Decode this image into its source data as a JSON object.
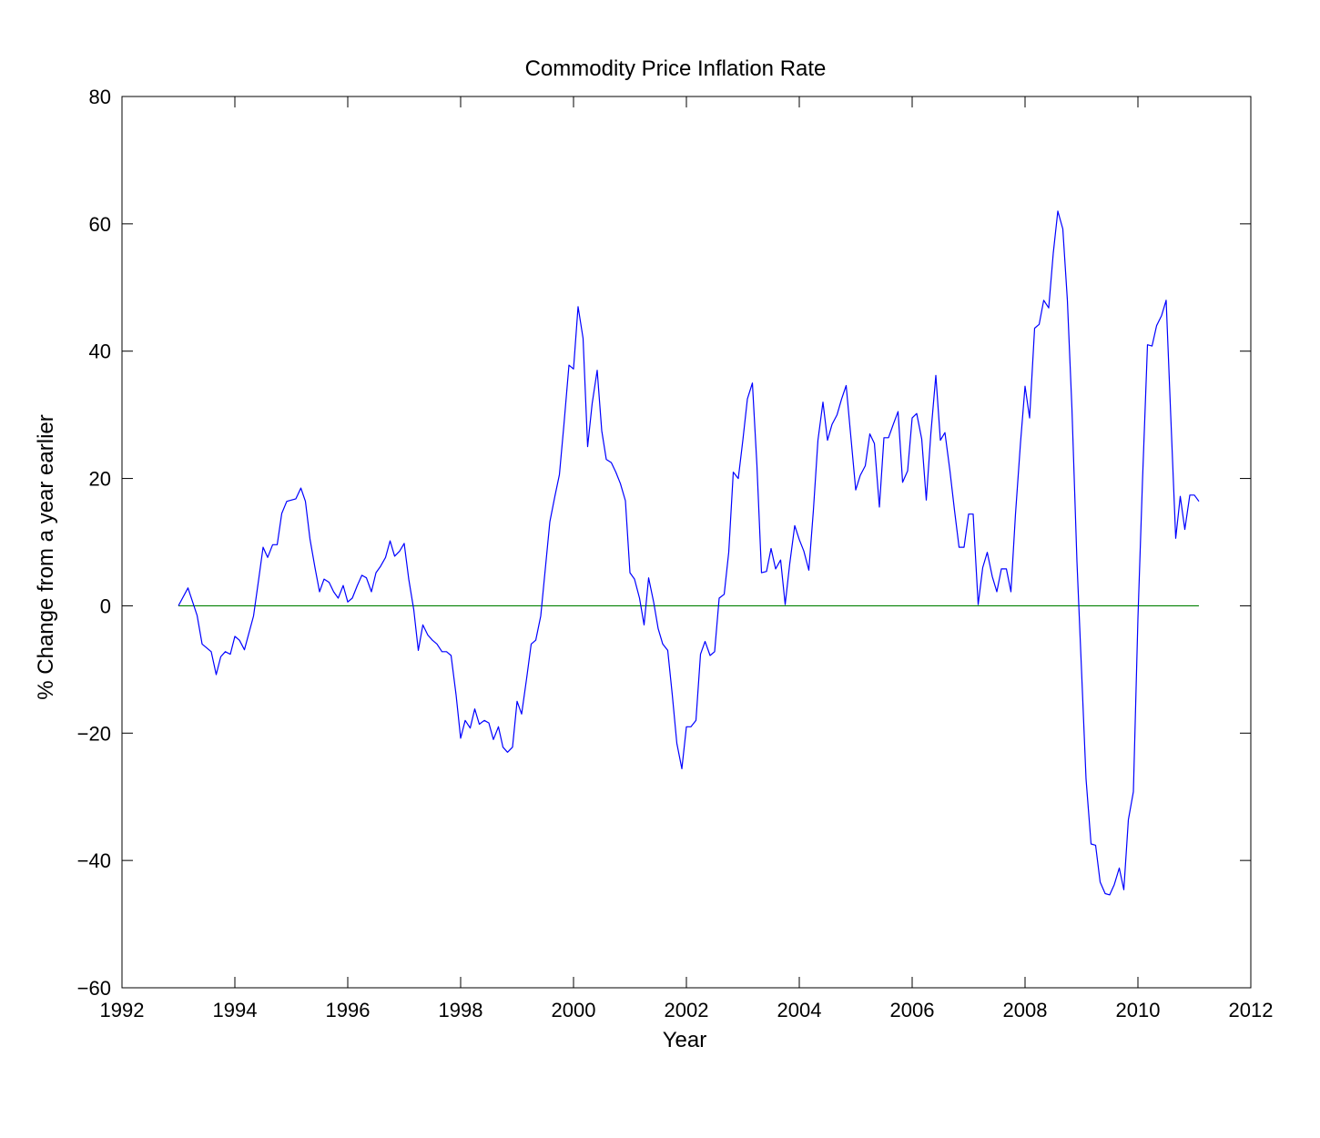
{
  "chart_data": {
    "type": "line",
    "title": "Commodity Price Inflation Rate",
    "xlabel": "Year",
    "ylabel": "% Change from a year earlier",
    "xlim": [
      1992,
      2012
    ],
    "ylim": [
      -60,
      80
    ],
    "xticks": [
      1992,
      1994,
      1996,
      1998,
      2000,
      2002,
      2004,
      2006,
      2008,
      2010,
      2012
    ],
    "yticks": [
      -60,
      -40,
      -20,
      0,
      20,
      40,
      60,
      80
    ],
    "ytick_labels": [
      "−60",
      "−40",
      "−20",
      "0",
      "20",
      "40",
      "60",
      "80"
    ],
    "grid": false,
    "colors": {
      "series": "#0000ff",
      "zero_line": "#008000",
      "axes": "#000000"
    },
    "series": [
      {
        "color": "#0000ff",
        "points": [
          [
            1993.0,
            0
          ],
          [
            1993.17,
            2.8
          ],
          [
            1993.33,
            -1.5
          ],
          [
            1993.42,
            -6
          ],
          [
            1993.58,
            -7.2
          ],
          [
            1993.67,
            -10.8
          ],
          [
            1993.75,
            -8
          ],
          [
            1993.83,
            -7.2
          ],
          [
            1993.92,
            -7.6
          ],
          [
            1994.0,
            -4.8
          ],
          [
            1994.08,
            -5.4
          ],
          [
            1994.17,
            -6.9
          ],
          [
            1994.33,
            -1.6
          ],
          [
            1994.42,
            4
          ],
          [
            1994.5,
            9.2
          ],
          [
            1994.58,
            7.6
          ],
          [
            1994.67,
            9.6
          ],
          [
            1994.75,
            9.6
          ],
          [
            1994.83,
            14.5
          ],
          [
            1994.92,
            16.4
          ],
          [
            1995.0,
            16.6
          ],
          [
            1995.08,
            16.8
          ],
          [
            1995.17,
            18.5
          ],
          [
            1995.25,
            16.4
          ],
          [
            1995.33,
            10.5
          ],
          [
            1995.42,
            6
          ],
          [
            1995.5,
            2.2
          ],
          [
            1995.58,
            4.2
          ],
          [
            1995.67,
            3.7
          ],
          [
            1995.75,
            2.2
          ],
          [
            1995.83,
            1.2
          ],
          [
            1995.92,
            3.2
          ],
          [
            1996.0,
            0.6
          ],
          [
            1996.08,
            1.2
          ],
          [
            1996.17,
            3.2
          ],
          [
            1996.25,
            4.8
          ],
          [
            1996.33,
            4.4
          ],
          [
            1996.42,
            2.2
          ],
          [
            1996.5,
            5.2
          ],
          [
            1996.58,
            6.2
          ],
          [
            1996.67,
            7.6
          ],
          [
            1996.75,
            10.2
          ],
          [
            1996.83,
            7.8
          ],
          [
            1996.92,
            8.6
          ],
          [
            1997.0,
            9.8
          ],
          [
            1997.08,
            4.2
          ],
          [
            1997.17,
            -0.6
          ],
          [
            1997.25,
            -7
          ],
          [
            1997.33,
            -3
          ],
          [
            1997.42,
            -4.6
          ],
          [
            1997.5,
            -5.4
          ],
          [
            1997.58,
            -6
          ],
          [
            1997.67,
            -7.2
          ],
          [
            1997.75,
            -7.2
          ],
          [
            1997.83,
            -7.8
          ],
          [
            1997.92,
            -14
          ],
          [
            1998.0,
            -20.8
          ],
          [
            1998.08,
            -18
          ],
          [
            1998.17,
            -19.2
          ],
          [
            1998.25,
            -16.2
          ],
          [
            1998.33,
            -18.6
          ],
          [
            1998.42,
            -18
          ],
          [
            1998.5,
            -18.4
          ],
          [
            1998.58,
            -21
          ],
          [
            1998.67,
            -19
          ],
          [
            1998.75,
            -22.2
          ],
          [
            1998.83,
            -23
          ],
          [
            1998.92,
            -22.2
          ],
          [
            1999.0,
            -15
          ],
          [
            1999.08,
            -17
          ],
          [
            1999.17,
            -11.4
          ],
          [
            1999.25,
            -6
          ],
          [
            1999.33,
            -5.4
          ],
          [
            1999.42,
            -1.6
          ],
          [
            1999.5,
            5.8
          ],
          [
            1999.58,
            13.2
          ],
          [
            1999.67,
            17.2
          ],
          [
            1999.75,
            20.6
          ],
          [
            1999.83,
            28.5
          ],
          [
            1999.92,
            37.8
          ],
          [
            2000.0,
            37.2
          ],
          [
            2000.08,
            47
          ],
          [
            2000.17,
            42
          ],
          [
            2000.25,
            25
          ],
          [
            2000.33,
            31.8
          ],
          [
            2000.42,
            37
          ],
          [
            2000.5,
            27.5
          ],
          [
            2000.58,
            23
          ],
          [
            2000.67,
            22.5
          ],
          [
            2000.75,
            21
          ],
          [
            2000.83,
            19.2
          ],
          [
            2000.92,
            16.5
          ],
          [
            2001.0,
            5.2
          ],
          [
            2001.08,
            4.2
          ],
          [
            2001.17,
            1.2
          ],
          [
            2001.25,
            -3
          ],
          [
            2001.33,
            4.4
          ],
          [
            2001.42,
            0.6
          ],
          [
            2001.5,
            -3.6
          ],
          [
            2001.58,
            -6
          ],
          [
            2001.67,
            -7
          ],
          [
            2001.75,
            -14
          ],
          [
            2001.83,
            -21.6
          ],
          [
            2001.92,
            -25.6
          ],
          [
            2002.0,
            -19
          ],
          [
            2002.08,
            -19
          ],
          [
            2002.17,
            -18
          ],
          [
            2002.25,
            -7.6
          ],
          [
            2002.33,
            -5.6
          ],
          [
            2002.42,
            -7.8
          ],
          [
            2002.5,
            -7.2
          ],
          [
            2002.58,
            1.2
          ],
          [
            2002.67,
            1.8
          ],
          [
            2002.75,
            8.4
          ],
          [
            2002.83,
            21
          ],
          [
            2002.92,
            20
          ],
          [
            2003.0,
            26
          ],
          [
            2003.08,
            32.5
          ],
          [
            2003.17,
            35
          ],
          [
            2003.25,
            22
          ],
          [
            2003.33,
            5.2
          ],
          [
            2003.42,
            5.4
          ],
          [
            2003.5,
            9
          ],
          [
            2003.58,
            5.8
          ],
          [
            2003.67,
            7.2
          ],
          [
            2003.75,
            0.2
          ],
          [
            2003.83,
            6.6
          ],
          [
            2003.92,
            12.6
          ],
          [
            2004.0,
            10.4
          ],
          [
            2004.08,
            8.6
          ],
          [
            2004.17,
            5.6
          ],
          [
            2004.25,
            15
          ],
          [
            2004.33,
            26
          ],
          [
            2004.42,
            32
          ],
          [
            2004.5,
            26
          ],
          [
            2004.58,
            28.5
          ],
          [
            2004.67,
            30
          ],
          [
            2004.75,
            32.5
          ],
          [
            2004.83,
            34.6
          ],
          [
            2004.92,
            26
          ],
          [
            2005.0,
            18.2
          ],
          [
            2005.08,
            20.5
          ],
          [
            2005.17,
            22
          ],
          [
            2005.25,
            27
          ],
          [
            2005.33,
            25.5
          ],
          [
            2005.42,
            15.5
          ],
          [
            2005.5,
            26.4
          ],
          [
            2005.58,
            26.4
          ],
          [
            2005.67,
            28.6
          ],
          [
            2005.75,
            30.5
          ],
          [
            2005.83,
            19.4
          ],
          [
            2005.92,
            21.2
          ],
          [
            2006.0,
            29.5
          ],
          [
            2006.08,
            30.2
          ],
          [
            2006.17,
            26.2
          ],
          [
            2006.25,
            16.6
          ],
          [
            2006.33,
            27
          ],
          [
            2006.42,
            36.2
          ],
          [
            2006.5,
            26
          ],
          [
            2006.58,
            27.2
          ],
          [
            2006.67,
            21.2
          ],
          [
            2006.75,
            15
          ],
          [
            2006.83,
            9.2
          ],
          [
            2006.92,
            9.2
          ],
          [
            2007.0,
            14.4
          ],
          [
            2007.08,
            14.4
          ],
          [
            2007.17,
            0.2
          ],
          [
            2007.25,
            6
          ],
          [
            2007.33,
            8.4
          ],
          [
            2007.42,
            4.6
          ],
          [
            2007.5,
            2.2
          ],
          [
            2007.58,
            5.8
          ],
          [
            2007.67,
            5.8
          ],
          [
            2007.75,
            2.2
          ],
          [
            2007.83,
            14.4
          ],
          [
            2007.92,
            25.6
          ],
          [
            2008.0,
            34.5
          ],
          [
            2008.08,
            29.5
          ],
          [
            2008.17,
            43.6
          ],
          [
            2008.25,
            44.2
          ],
          [
            2008.33,
            48
          ],
          [
            2008.42,
            46.8
          ],
          [
            2008.5,
            55.4
          ],
          [
            2008.58,
            62
          ],
          [
            2008.67,
            59.2
          ],
          [
            2008.75,
            48
          ],
          [
            2008.83,
            31
          ],
          [
            2008.92,
            7
          ],
          [
            2009.0,
            -10
          ],
          [
            2009.08,
            -27.2
          ],
          [
            2009.17,
            -37.4
          ],
          [
            2009.25,
            -37.6
          ],
          [
            2009.33,
            -43.4
          ],
          [
            2009.42,
            -45.2
          ],
          [
            2009.5,
            -45.4
          ],
          [
            2009.58,
            -43.8
          ],
          [
            2009.67,
            -41.2
          ],
          [
            2009.75,
            -44.6
          ],
          [
            2009.83,
            -33.6
          ],
          [
            2009.92,
            -29.2
          ],
          [
            2010.0,
            -2
          ],
          [
            2010.08,
            19.6
          ],
          [
            2010.17,
            41
          ],
          [
            2010.25,
            40.8
          ],
          [
            2010.33,
            44
          ],
          [
            2010.42,
            45.6
          ],
          [
            2010.5,
            48
          ],
          [
            2010.58,
            30
          ],
          [
            2010.67,
            10.6
          ],
          [
            2010.75,
            17.2
          ],
          [
            2010.83,
            12
          ],
          [
            2010.92,
            17.4
          ],
          [
            2011.0,
            17.4
          ],
          [
            2011.08,
            16.4
          ]
        ]
      }
    ],
    "reference_line": {
      "y": 0,
      "x": [
        1993.0,
        2011.08
      ],
      "color": "#008000"
    }
  }
}
